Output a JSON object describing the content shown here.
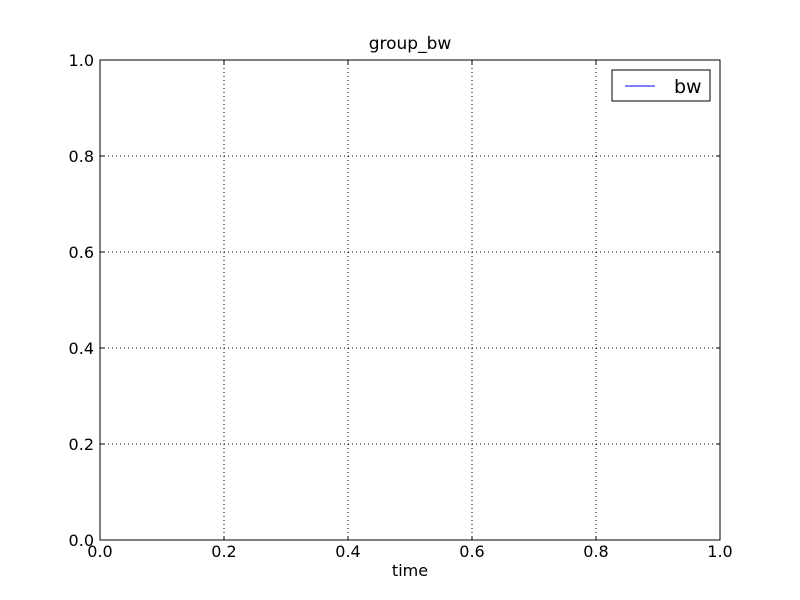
{
  "chart_data": {
    "type": "line",
    "title": "group_bw",
    "xlabel": "time",
    "ylabel": "",
    "xlim": [
      0.0,
      1.0
    ],
    "ylim": [
      0.0,
      1.0
    ],
    "x_ticks": [
      "0.0",
      "0.2",
      "0.4",
      "0.6",
      "0.8",
      "1.0"
    ],
    "y_ticks": [
      "0.0",
      "0.2",
      "0.4",
      "0.6",
      "0.8",
      "1.0"
    ],
    "grid": true,
    "legend_position": "top-right",
    "series": [
      {
        "name": "bw",
        "color": "#0000ff",
        "x": [],
        "y": []
      }
    ]
  }
}
